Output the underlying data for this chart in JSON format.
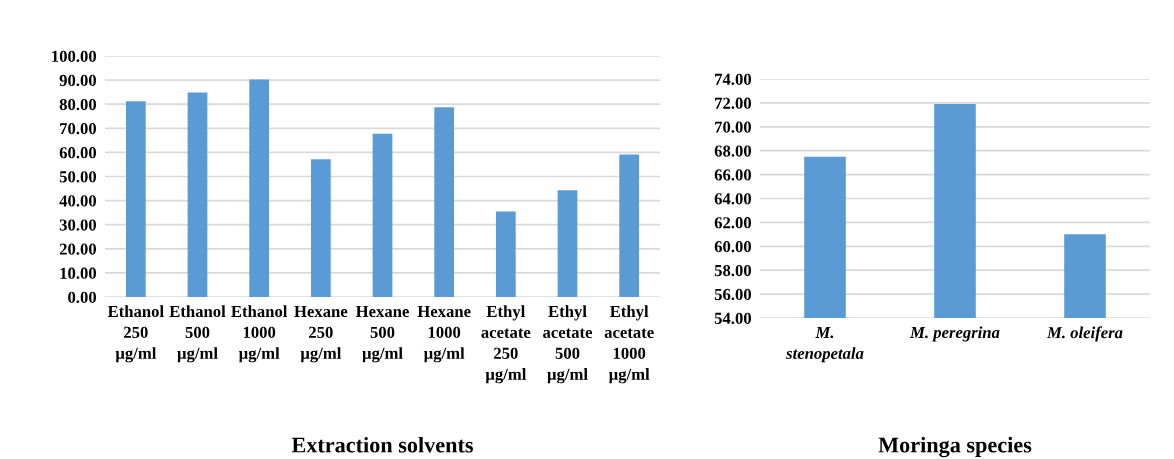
{
  "chart_data": [
    {
      "type": "bar",
      "xlabel": "Extraction solvents",
      "categories": [
        "Ethanol\n250\nµg/ml",
        "Ethanol\n500\nµg/ml",
        "Ethanol\n1000\nµg/ml",
        "Hexane\n250\nµg/ml",
        "Hexane\n500\nµg/ml",
        "Hexane\n1000\nµg/ml",
        "Ethyl\nacetate\n250\nµg/ml",
        "Ethyl\nacetate\n500\nµg/ml",
        "Ethyl\nacetate\n1000\nµg/ml"
      ],
      "values": [
        81.2,
        84.9,
        90.3,
        57.2,
        67.7,
        78.7,
        35.5,
        44.3,
        59.1
      ],
      "color": "#5b9bd5",
      "ylim": [
        0,
        100
      ],
      "yticks": [
        {
          "value": 0,
          "label": "0.00"
        },
        {
          "value": 10,
          "label": "10.00"
        },
        {
          "value": 20,
          "label": "20.00"
        },
        {
          "value": 30,
          "label": "30.00"
        },
        {
          "value": 40,
          "label": "40.00"
        },
        {
          "value": 50,
          "label": "50.00"
        },
        {
          "value": 60,
          "label": "60.00"
        },
        {
          "value": 70,
          "label": "70.00"
        },
        {
          "value": 80,
          "label": "80.00"
        },
        {
          "value": 90,
          "label": "90.00"
        },
        {
          "value": 100,
          "label": "100.00"
        }
      ],
      "grid": "y"
    },
    {
      "type": "bar",
      "xlabel": "Moringa species",
      "categories": [
        "M.\nstenopetala",
        "M. peregrina",
        "M. oleifera"
      ],
      "values": [
        67.5,
        71.9,
        61.0
      ],
      "color": "#5b9bd5",
      "ylim": [
        54,
        74
      ],
      "yticks": [
        {
          "value": 54,
          "label": "54.00"
        },
        {
          "value": 56,
          "label": "56.00"
        },
        {
          "value": 58,
          "label": "58.00"
        },
        {
          "value": 60,
          "label": "60.00"
        },
        {
          "value": 62,
          "label": "62.00"
        },
        {
          "value": 64,
          "label": "64.00"
        },
        {
          "value": 66,
          "label": "66.00"
        },
        {
          "value": 68,
          "label": "68.00"
        },
        {
          "value": 70,
          "label": "70.00"
        },
        {
          "value": 72,
          "label": "72.00"
        },
        {
          "value": 74,
          "label": "74.00"
        }
      ],
      "grid": "y"
    }
  ]
}
